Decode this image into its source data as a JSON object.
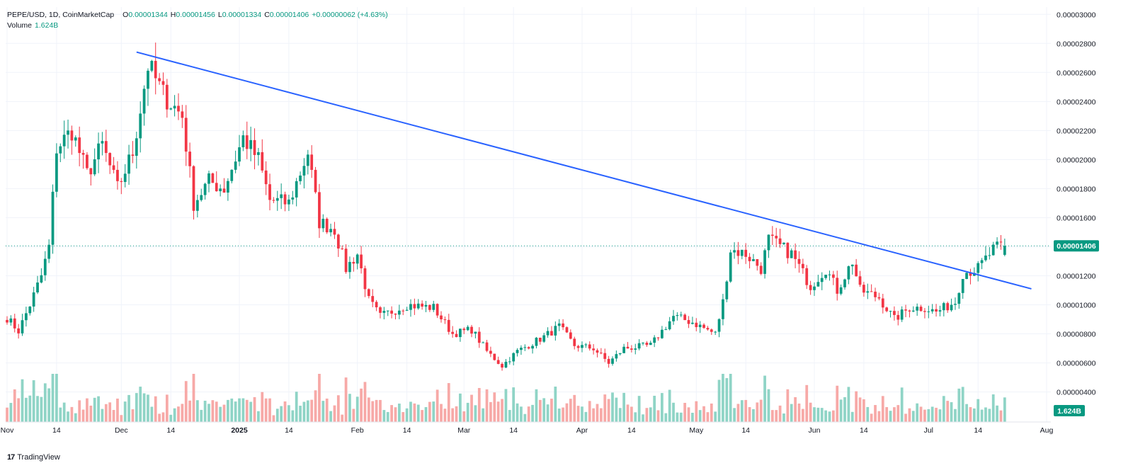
{
  "header": {
    "symbol": "PEPE/USD, 1D, CoinMarketCap",
    "open_label": "O",
    "open": "0.00001344",
    "high_label": "H",
    "high": "0.00001456",
    "low_label": "L",
    "low": "0.00001334",
    "close_label": "C",
    "close": "0.00001406",
    "change": "+0.00000062 (+4.63%)",
    "volume_label": "Volume",
    "volume_value": "1.624B"
  },
  "brand": {
    "logo_text": "17",
    "name": "TradingView"
  },
  "colors": {
    "up": "#089981",
    "down": "#f23645",
    "up_volume": "#8fd4c6",
    "down_volume": "#f7a9a7",
    "trendline": "#2962ff",
    "grid": "#f0f3fa",
    "axis_text": "#131722",
    "price_badge": "#089981"
  },
  "chart_data": {
    "type": "candlestick",
    "title": "PEPE/USD, 1D, CoinMarketCap",
    "ylabel": "",
    "ylim": [
      3.2e-06,
      3e-06
    ],
    "y_ticks": [
      "0.00000400",
      "0.00000600",
      "0.00000800",
      "0.00001000",
      "0.00001200",
      "0.00001400",
      "0.00001600",
      "0.00001800",
      "0.00002000",
      "0.00002200",
      "0.00002400",
      "0.00002600",
      "0.00002800",
      "0.00003000"
    ],
    "y_tick_values": [
      4e-06,
      6e-06,
      8e-06,
      1e-05,
      1.2e-05,
      1.4e-05,
      1.6e-05,
      1.8e-05,
      2e-05,
      2.2e-05,
      2.4e-05,
      2.6e-05,
      2.8e-05,
      3e-05
    ],
    "x_ticks": [
      {
        "label": "Nov",
        "date": "2024-11-01"
      },
      {
        "label": "14",
        "date": "2024-11-14"
      },
      {
        "label": "Dec",
        "date": "2024-12-01"
      },
      {
        "label": "14",
        "date": "2024-12-14"
      },
      {
        "label": "2025",
        "date": "2025-01-01"
      },
      {
        "label": "14",
        "date": "2025-01-14"
      },
      {
        "label": "Feb",
        "date": "2025-02-01"
      },
      {
        "label": "14",
        "date": "2025-02-14"
      },
      {
        "label": "Mar",
        "date": "2025-03-01"
      },
      {
        "label": "14",
        "date": "2025-03-14"
      },
      {
        "label": "Apr",
        "date": "2025-04-01"
      },
      {
        "label": "14",
        "date": "2025-04-14"
      },
      {
        "label": "May",
        "date": "2025-05-01"
      },
      {
        "label": "14",
        "date": "2025-05-14"
      },
      {
        "label": "Jun",
        "date": "2025-06-01"
      },
      {
        "label": "14",
        "date": "2025-06-14"
      },
      {
        "label": "Jul",
        "date": "2025-07-01"
      },
      {
        "label": "14",
        "date": "2025-07-14"
      },
      {
        "label": "Aug",
        "date": "2025-08-01"
      }
    ],
    "x_range": [
      "2024-11-01",
      "2025-08-01"
    ],
    "current_price_label": "0.00001406",
    "current_price": 1.406e-05,
    "volume_badge": "1.624B",
    "trendline": {
      "start": {
        "date": "2024-12-05",
        "price": 2.74e-05
      },
      "end": {
        "date": "2025-07-28",
        "price": 1.11e-05
      }
    },
    "anchors": [
      [
        "2024-11-01",
        9.1e-06
      ],
      [
        "2024-11-04",
        8.2e-06
      ],
      [
        "2024-11-07",
        1e-05
      ],
      [
        "2024-11-10",
        1.2e-05
      ],
      [
        "2024-11-12",
        1.4e-05
      ],
      [
        "2024-11-14",
        2.08e-05
      ],
      [
        "2024-11-18",
        2.2e-05
      ],
      [
        "2024-11-22",
        1.9e-05
      ],
      [
        "2024-11-26",
        2.1e-05
      ],
      [
        "2024-11-30",
        1.8e-05
      ],
      [
        "2024-12-04",
        2.05e-05
      ],
      [
        "2024-12-08",
        2.65e-05
      ],
      [
        "2024-12-12",
        2.45e-05
      ],
      [
        "2024-12-17",
        2.3e-05
      ],
      [
        "2024-12-20",
        1.7e-05
      ],
      [
        "2024-12-24",
        1.85e-05
      ],
      [
        "2024-12-28",
        1.8e-05
      ],
      [
        "2025-01-02",
        2.15e-05
      ],
      [
        "2025-01-06",
        2e-05
      ],
      [
        "2025-01-09",
        1.72e-05
      ],
      [
        "2025-01-14",
        1.7e-05
      ],
      [
        "2025-01-19",
        2.05e-05
      ],
      [
        "2025-01-22",
        1.57e-05
      ],
      [
        "2025-01-26",
        1.52e-05
      ],
      [
        "2025-01-29",
        1.25e-05
      ],
      [
        "2025-02-01",
        1.35e-05
      ],
      [
        "2025-02-04",
        1.03e-05
      ],
      [
        "2025-02-07",
        9.2e-06
      ],
      [
        "2025-02-14",
        1e-05
      ],
      [
        "2025-02-21",
        9.8e-06
      ],
      [
        "2025-02-26",
        8e-06
      ],
      [
        "2025-03-03",
        8.3e-06
      ],
      [
        "2025-03-07",
        6.8e-06
      ],
      [
        "2025-03-11",
        5.8e-06
      ],
      [
        "2025-03-15",
        6.8e-06
      ],
      [
        "2025-03-22",
        7.8e-06
      ],
      [
        "2025-03-26",
        8.5e-06
      ],
      [
        "2025-03-30",
        7.2e-06
      ],
      [
        "2025-04-04",
        7e-06
      ],
      [
        "2025-04-08",
        6e-06
      ],
      [
        "2025-04-12",
        7e-06
      ],
      [
        "2025-04-19",
        7.2e-06
      ],
      [
        "2025-04-25",
        9.2e-06
      ],
      [
        "2025-04-30",
        8.8e-06
      ],
      [
        "2025-05-06",
        8e-06
      ],
      [
        "2025-05-08",
        1.02e-05
      ],
      [
        "2025-05-10",
        1.38e-05
      ],
      [
        "2025-05-14",
        1.35e-05
      ],
      [
        "2025-05-18",
        1.25e-05
      ],
      [
        "2025-05-20",
        1.45e-05
      ],
      [
        "2025-05-26",
        1.35e-05
      ],
      [
        "2025-05-31",
        1.13e-05
      ],
      [
        "2025-06-04",
        1.25e-05
      ],
      [
        "2025-06-07",
        1.1e-05
      ],
      [
        "2025-06-11",
        1.3e-05
      ],
      [
        "2025-06-13",
        1.1e-05
      ],
      [
        "2025-06-18",
        1.05e-05
      ],
      [
        "2025-06-22",
        9e-06
      ],
      [
        "2025-06-26",
        9.8e-06
      ],
      [
        "2025-06-30",
        9.8e-06
      ],
      [
        "2025-07-03",
        9.5e-06
      ],
      [
        "2025-07-08",
        1.02e-05
      ],
      [
        "2025-07-10",
        1.22e-05
      ],
      [
        "2025-07-14",
        1.25e-05
      ],
      [
        "2025-07-18",
        1.38e-05
      ],
      [
        "2025-07-21",
        1.41e-05
      ]
    ],
    "last_candle": {
      "date": "2025-07-21",
      "open": 1.344e-05,
      "high": 1.456e-05,
      "low": 1.334e-05,
      "close": 1.406e-05,
      "volume": "1.624B"
    }
  }
}
